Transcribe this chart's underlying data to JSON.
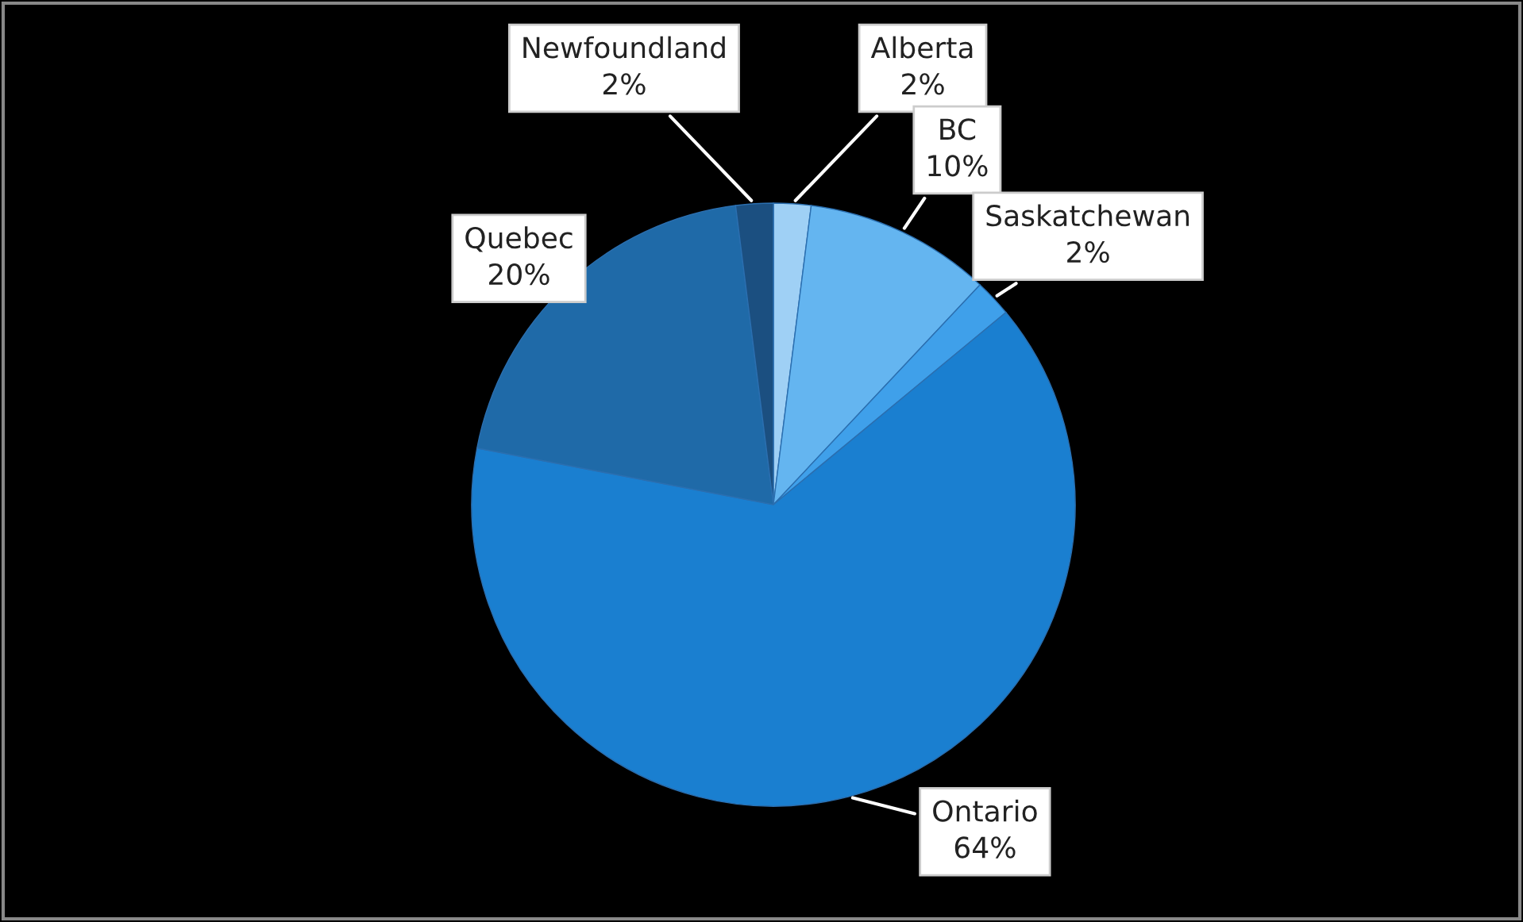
{
  "chart_data": {
    "type": "pie",
    "categories": [
      "Alberta",
      "BC",
      "Saskatchewan",
      "Ontario",
      "Quebec",
      "Newfoundland"
    ],
    "values": [
      2,
      10,
      2,
      64,
      20,
      2
    ],
    "colors": [
      "#9fd0f5",
      "#64b5f0",
      "#3fa0ea",
      "#1a7fd0",
      "#1f6aa8",
      "#1b4f80"
    ],
    "value_labels": [
      "2%",
      "10%",
      "2%",
      "64%",
      "20%",
      "2%"
    ]
  }
}
